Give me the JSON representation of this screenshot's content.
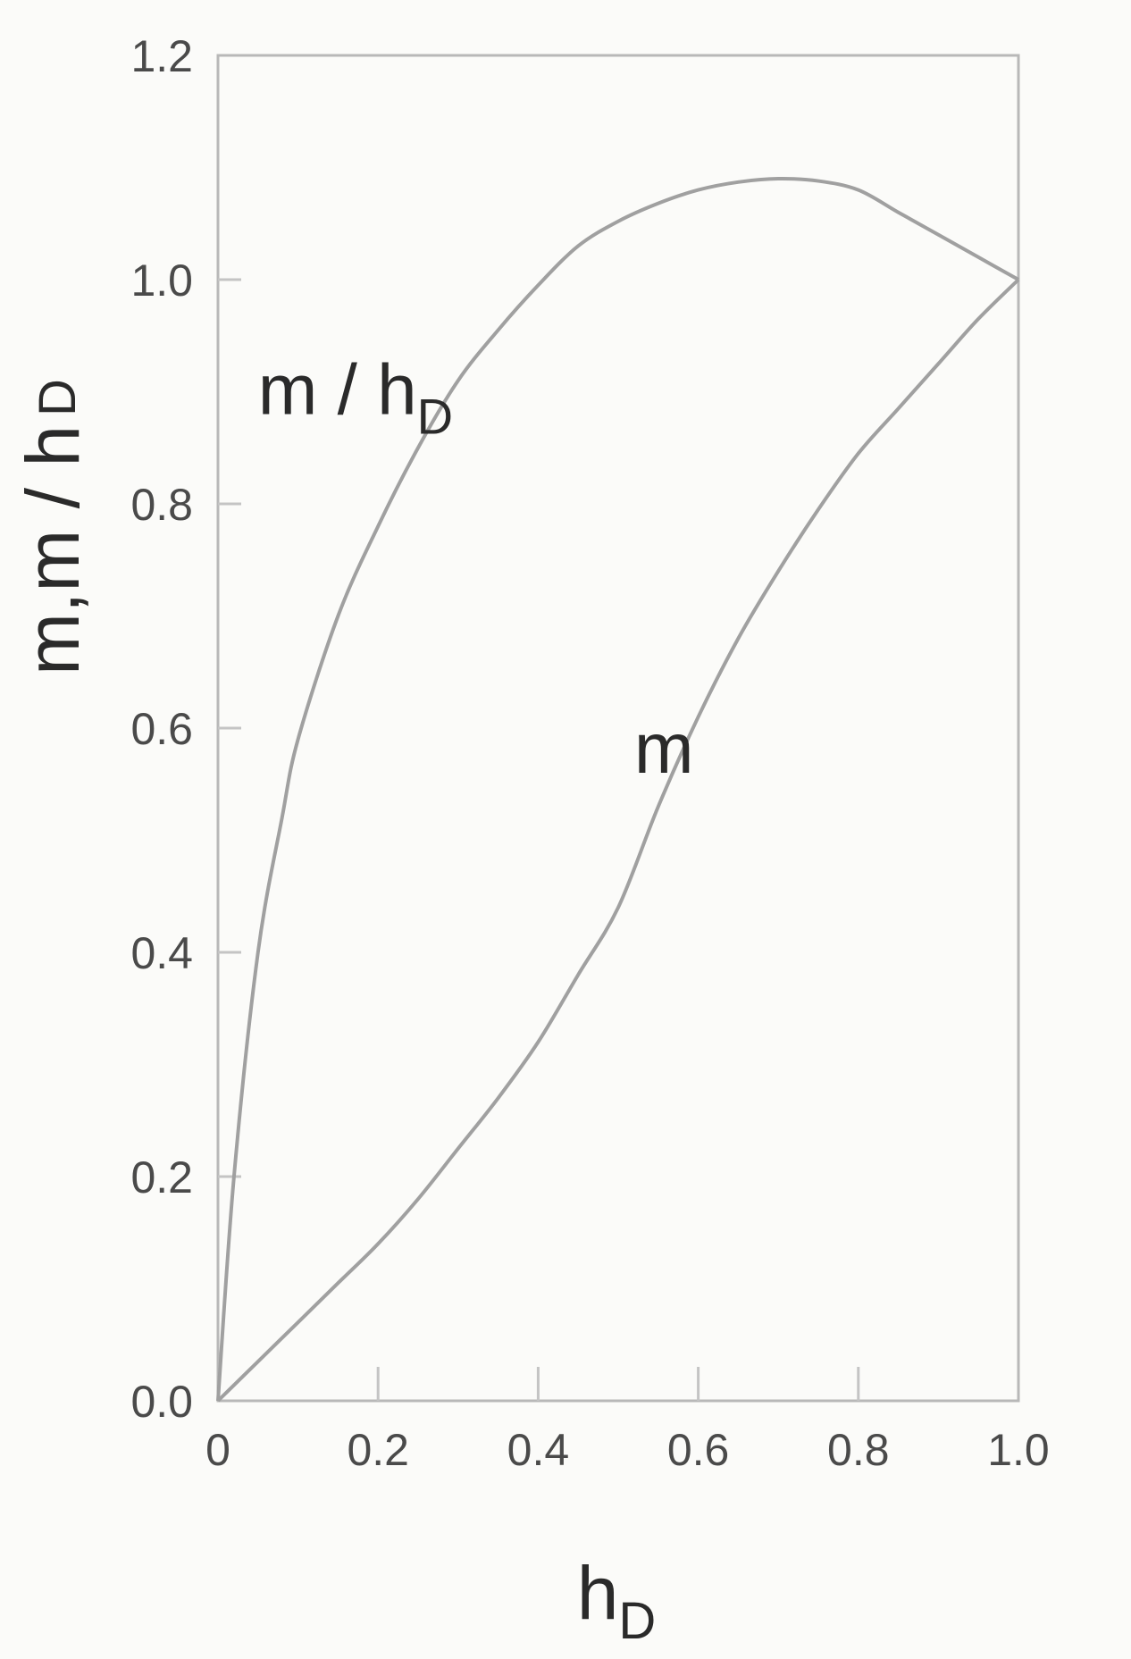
{
  "chart_data": {
    "type": "line",
    "title": "",
    "xlabel": {
      "main": "h",
      "sub": "D"
    },
    "ylabel": {
      "main": "m,m / h",
      "sub": "D"
    },
    "xlim": [
      0,
      1.0
    ],
    "ylim": [
      0,
      1.2
    ],
    "grid": false,
    "x_ticks": [
      {
        "value": 0,
        "label": "0"
      },
      {
        "value": 0.2,
        "label": "0.2"
      },
      {
        "value": 0.4,
        "label": "0.4"
      },
      {
        "value": 0.6,
        "label": "0.6"
      },
      {
        "value": 0.8,
        "label": "0.8"
      },
      {
        "value": 1.0,
        "label": "1.0"
      }
    ],
    "y_ticks": [
      {
        "value": 0.0,
        "label": "0.0"
      },
      {
        "value": 0.2,
        "label": "0.2"
      },
      {
        "value": 0.4,
        "label": "0.4"
      },
      {
        "value": 0.6,
        "label": "0.6"
      },
      {
        "value": 0.8,
        "label": "0.8"
      },
      {
        "value": 1.0,
        "label": "1.0"
      },
      {
        "value": 1.2,
        "label": "1.2"
      }
    ],
    "series": [
      {
        "name": "m/hD",
        "label": {
          "main": "m / h",
          "sub": "D",
          "x": 0.05,
          "y": 0.88
        },
        "color": "#a0a0a0",
        "x": [
          0,
          0.02,
          0.05,
          0.08,
          0.1,
          0.15,
          0.2,
          0.25,
          0.3,
          0.35,
          0.4,
          0.45,
          0.5,
          0.55,
          0.6,
          0.65,
          0.7,
          0.75,
          0.8,
          0.85,
          0.9,
          0.95,
          1.0
        ],
        "y": [
          0,
          0.2,
          0.4,
          0.52,
          0.59,
          0.7,
          0.78,
          0.85,
          0.91,
          0.955,
          0.995,
          1.03,
          1.052,
          1.068,
          1.08,
          1.087,
          1.09,
          1.088,
          1.08,
          1.06,
          1.04,
          1.02,
          1.0
        ]
      },
      {
        "name": "m",
        "label": {
          "main": "m",
          "x": 0.52,
          "y": 0.56
        },
        "color": "#a0a0a0",
        "x": [
          0,
          0.05,
          0.1,
          0.15,
          0.2,
          0.25,
          0.3,
          0.35,
          0.4,
          0.45,
          0.5,
          0.55,
          0.6,
          0.65,
          0.7,
          0.75,
          0.8,
          0.85,
          0.9,
          0.95,
          1.0
        ],
        "y": [
          0,
          0.035,
          0.07,
          0.105,
          0.14,
          0.18,
          0.225,
          0.27,
          0.32,
          0.38,
          0.44,
          0.53,
          0.61,
          0.68,
          0.74,
          0.795,
          0.845,
          0.885,
          0.925,
          0.965,
          1.0
        ]
      }
    ]
  }
}
